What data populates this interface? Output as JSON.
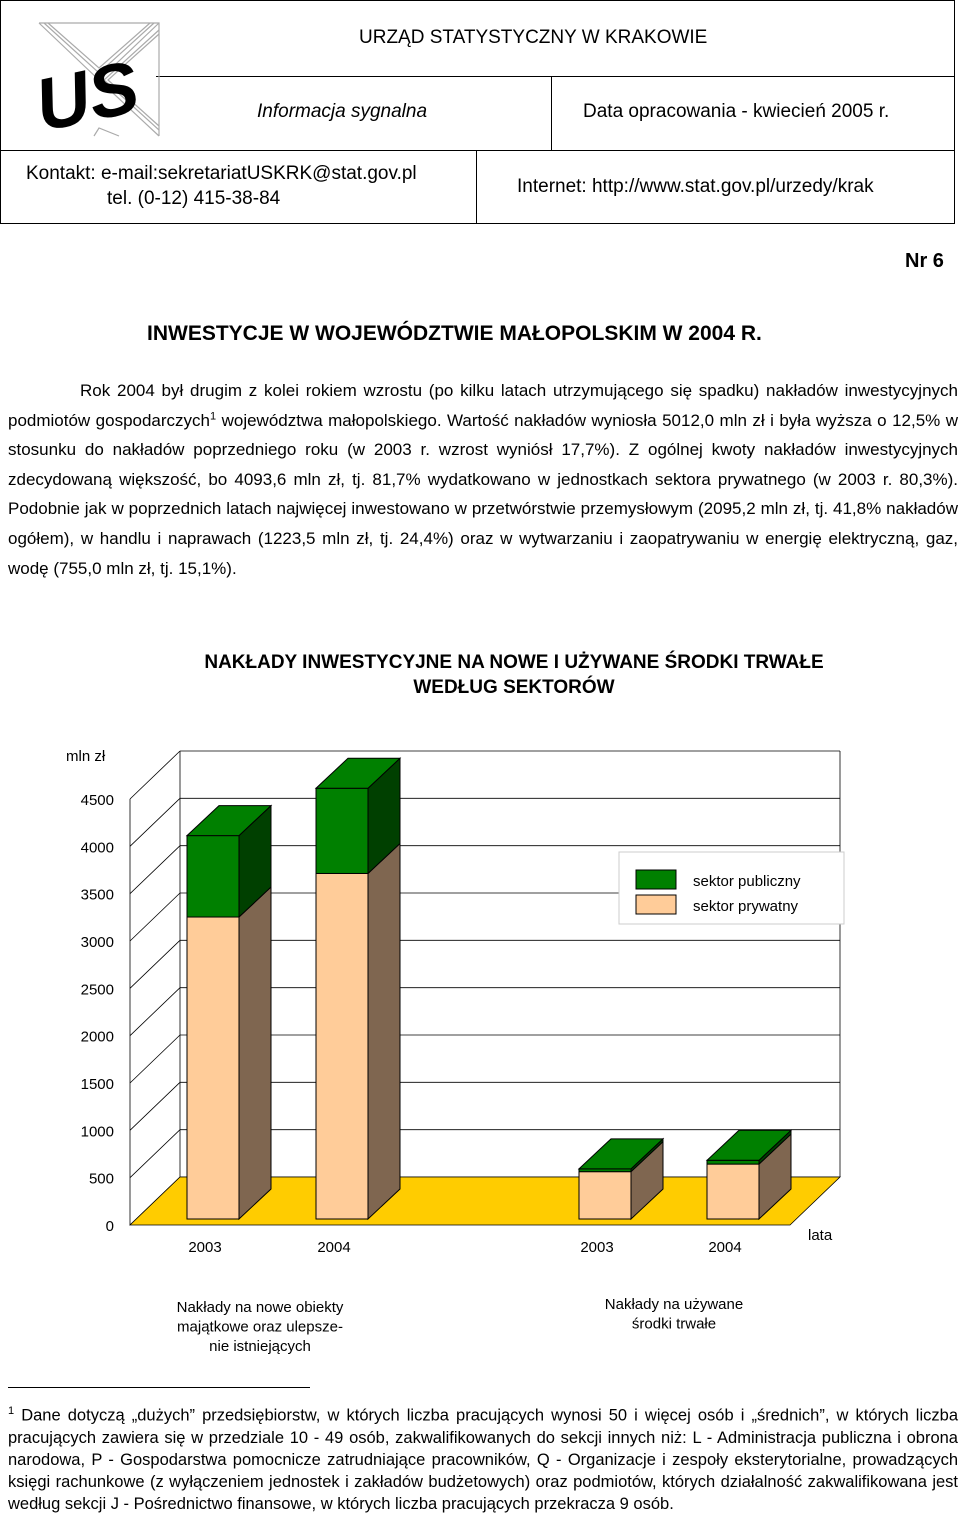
{
  "header": {
    "office": "URZĄD STATYSTYCZNY W KRAKOWIE",
    "doc_type": "Informacja sygnalna",
    "date": "Data opracowania - kwiecień 2005 r.",
    "contact_email": "Kontakt: e-mail:sekretariatUSKRK@stat.gov.pl",
    "contact_tel": "tel. (0-12) 415-38-84",
    "internet": "Internet: http://www.stat.gov.pl/urzedy/krak",
    "logo_text": "US",
    "logo_icon": "us-logo-icon"
  },
  "number": "Nr 6",
  "title": "INWESTYCJE W WOJEWÓDZTWIE MAŁOPOLSKIM W 2004 R.",
  "paragraph": {
    "part1": "Rok 2004 był drugim z kolei rokiem wzrostu (po kilku latach utrzymującego się spadku) nakładów inwestycyjnych podmiotów gospodarczych",
    "footnote_ref": "1",
    "part2": " województwa małopolskiego. Wartość nakładów wyniosła 5012,0 mln zł i była wyższa o 12,5% w stosunku do nakładów poprzedniego roku (w 2003 r. wzrost wyniósł 17,7%). Z ogólnej kwoty nakładów inwestycyjnych zdecydowaną większość, bo 4093,6 mln zł, tj. 81,7% wydatkowano w jednostkach sektora prywatnego (w 2003 r. 80,3%). Podobnie jak w poprzednich latach najwięcej inwestowano w przetwórstwie przemysłowym (2095,2 mln zł, tj. 41,8% nakładów ogółem), w handlu i naprawach (1223,5 mln zł, tj. 24,4%) oraz w wytwarzaniu i zaopatrywaniu w energię elektryczną, gaz, wodę (755,0 mln zł, tj. 15,1%)."
  },
  "chart_title_line1": "NAKŁADY INWESTYCYJNE NA NOWE I UŻYWANE ŚRODKI TRWAŁE",
  "chart_title_line2": "WEDŁUG SEKTORÓW",
  "chart_data": {
    "type": "bar",
    "stacked": true,
    "three_d": true,
    "ylabel": "mln zł",
    "xlabel": "lata",
    "ylim": [
      0,
      4500
    ],
    "yticks": [
      "0",
      "500",
      "1000",
      "1500",
      "2000",
      "2500",
      "3000",
      "3500",
      "4000",
      "4500"
    ],
    "categories": [
      "2003",
      "2004",
      "2003",
      "2004"
    ],
    "groups": [
      {
        "label": "Nakłady na nowe obiekty majątkowe oraz ulepszenie istniejących",
        "lines": [
          "Nakłady na nowe obiekty",
          "majątkowe oraz ulepsze-",
          "nie istniejących"
        ]
      },
      {
        "label": "Nakłady na używane środki trwałe",
        "lines": [
          "Nakłady na używane",
          "środki trwałe"
        ]
      }
    ],
    "series": [
      {
        "name": "sektor prywatny",
        "color": "#ffcc99",
        "side_color": "#7f6650",
        "values": [
          3190,
          3650,
          500,
          580
        ]
      },
      {
        "name": "sektor publiczny",
        "color": "#008000",
        "side_color": "#004000",
        "values": [
          860,
          900,
          30,
          40
        ]
      }
    ],
    "legend_position": "right",
    "floor_color": "#ffcc00",
    "grid": true
  },
  "footnote": {
    "mark": "1",
    "text": " Dane dotyczą „dużych” przedsiębiorstw, w których liczba pracujących wynosi 50 i więcej osób i „średnich”, w których liczba pracujących zawiera się w przedziale 10 - 49 osób, zakwalifikowanych do sekcji innych niż: L - Administracja publiczna i obrona narodowa, P - Gospodarstwa pomocnicze zatrudniające pracowników, Q - Organizacje i zespoły eksterytorialne, prowadzących księgi rachunkowe (z wyłączeniem jednostek i zakładów budżetowych) oraz podmiotów, których działalność zakwalifikowana jest według sekcji J - Pośrednictwo finansowe, w których liczba pracujących przekracza 9 osób."
  }
}
